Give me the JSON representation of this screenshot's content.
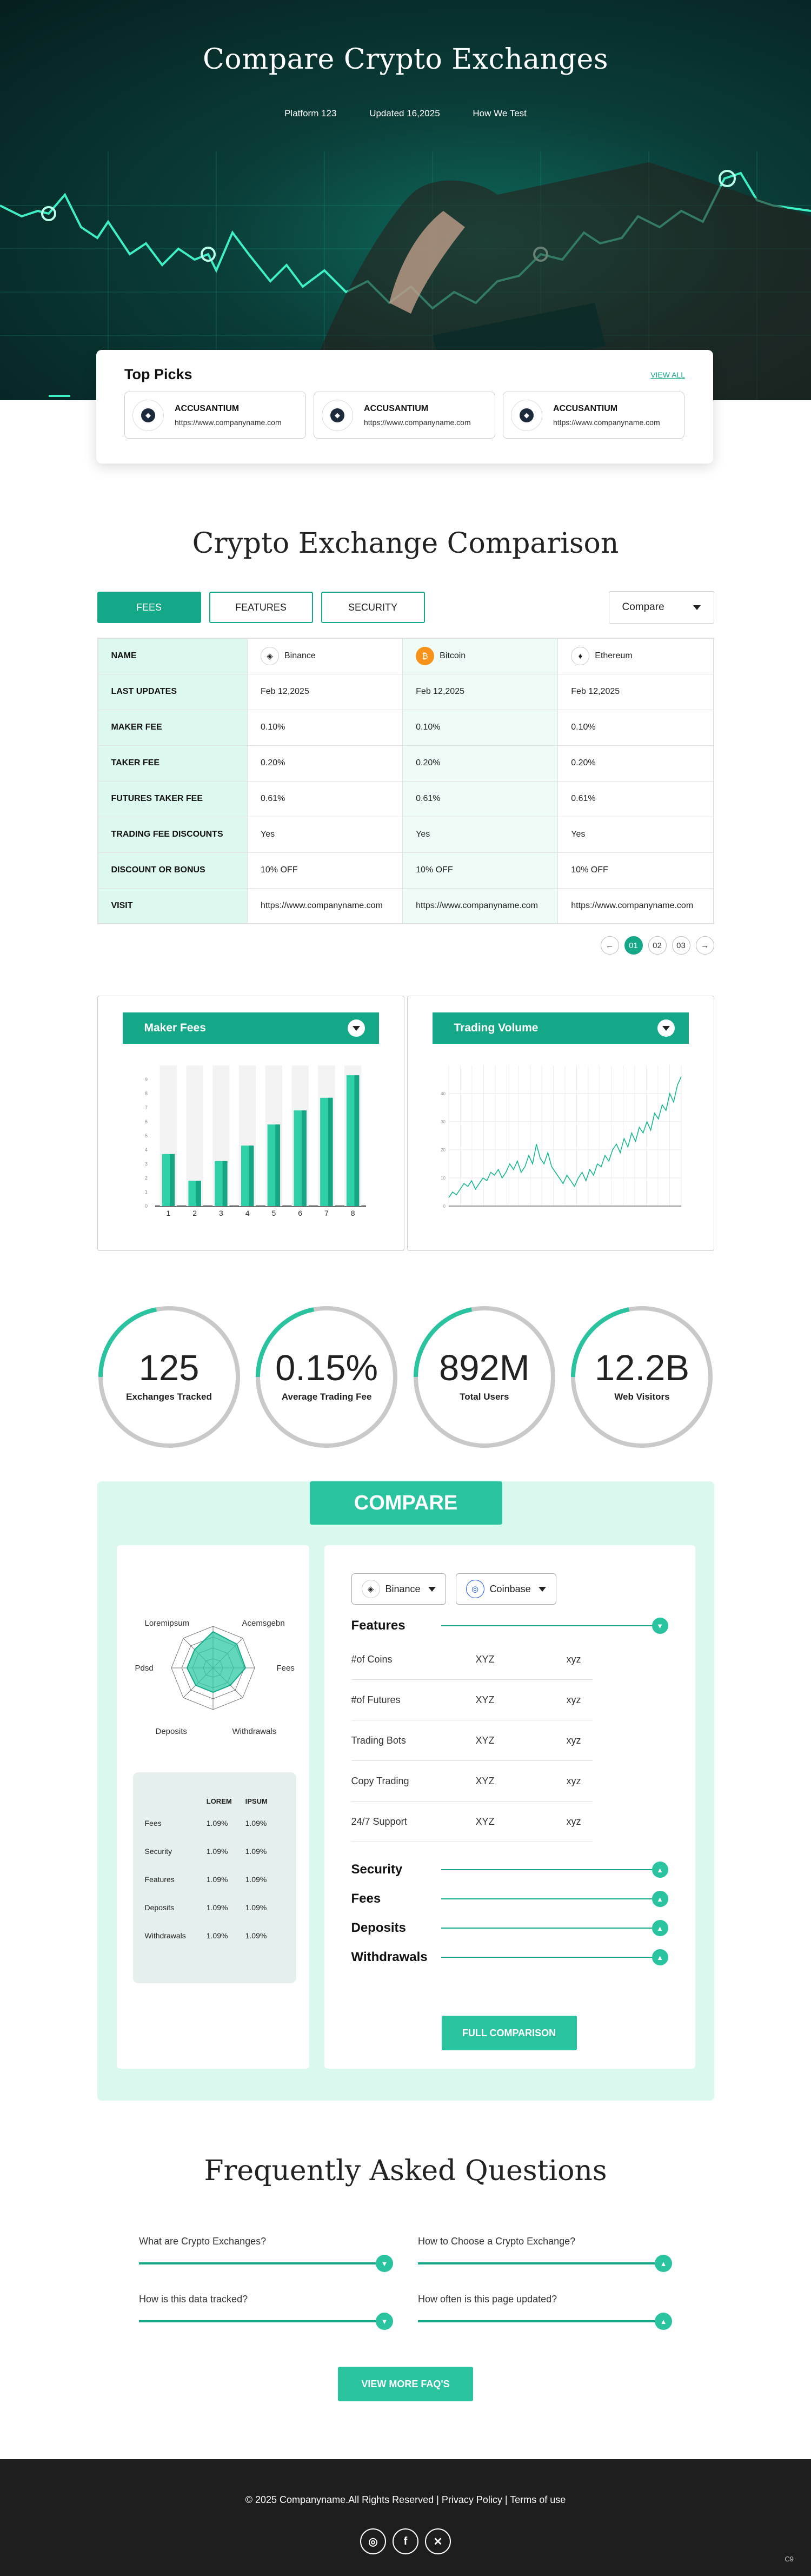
{
  "hero": {
    "title": "Compare Crypto Exchanges",
    "links": [
      "Platform 123",
      "Updated 16,2025",
      "How We Test"
    ]
  },
  "top_picks": {
    "title": "Top Picks",
    "view_all": "VIEW ALL",
    "cards": [
      {
        "name": "ACCUSANTIUM",
        "url": "https://www.companyname.com"
      },
      {
        "name": "ACCUSANTIUM",
        "url": "https://www.companyname.com"
      },
      {
        "name": "ACCUSANTIUM",
        "url": "https://www.companyname.com"
      }
    ]
  },
  "comparison": {
    "title": "Crypto Exchange Comparison",
    "tabs": [
      "FEES",
      "FEATURES",
      "SECURITY"
    ],
    "compare_label": "Compare",
    "columns": [
      "Binance",
      "Bitcoin",
      "Ethereum"
    ],
    "rows": [
      {
        "label": "NAME",
        "values": [
          "Binance",
          "Bitcoin",
          "Ethereum"
        ]
      },
      {
        "label": "LAST UPDATES",
        "values": [
          "Feb 12,2025",
          "Feb 12,2025",
          "Feb 12,2025"
        ]
      },
      {
        "label": "MAKER FEE",
        "values": [
          "0.10%",
          "0.10%",
          "0.10%"
        ]
      },
      {
        "label": "TAKER FEE",
        "values": [
          "0.20%",
          "0.20%",
          "0.20%"
        ]
      },
      {
        "label": "FUTURES TAKER FEE",
        "values": [
          "0.61%",
          "0.61%",
          "0.61%"
        ]
      },
      {
        "label": "TRADING FEE DISCOUNTS",
        "values": [
          "Yes",
          "Yes",
          "Yes"
        ]
      },
      {
        "label": "DISCOUNT OR BONUS",
        "values": [
          "10% OFF",
          "10% OFF",
          "10% OFF"
        ]
      },
      {
        "label": "VISIT",
        "values": [
          "https://www.companyname.com",
          "https://www.companyname.com",
          "https://www.companyname.com"
        ]
      }
    ],
    "pager": [
      "01",
      "02",
      "03"
    ],
    "prev_icon": "arrow-left-icon",
    "next_icon": "arrow-right-icon"
  },
  "chart_data": [
    {
      "type": "bar",
      "title": "Maker Fees",
      "categories": [
        "1",
        "2",
        "3",
        "4",
        "5",
        "6",
        "7",
        "8"
      ],
      "values": [
        3.7,
        1.8,
        3.2,
        4.3,
        5.8,
        6.8,
        7.7,
        9.3
      ],
      "ylim": [
        0,
        10
      ],
      "yticks": [
        "0",
        "1",
        "2",
        "3",
        "4",
        "5",
        "6",
        "7",
        "8",
        "9"
      ],
      "grid": false
    },
    {
      "type": "line",
      "title": "Trading Volume",
      "ylim": [
        0,
        50
      ],
      "yticks": [
        "0",
        "10",
        "20",
        "30",
        "40"
      ],
      "values": [
        3,
        5,
        4,
        6,
        8,
        7,
        9,
        6,
        8,
        10,
        9,
        12,
        11,
        13,
        10,
        12,
        15,
        13,
        16,
        12,
        14,
        18,
        15,
        22,
        17,
        15,
        19,
        14,
        12,
        10,
        8,
        11,
        9,
        7,
        10,
        12,
        9,
        13,
        11,
        15,
        14,
        18,
        16,
        20,
        22,
        19,
        24,
        21,
        26,
        23,
        28,
        26,
        30,
        27,
        33,
        31,
        36,
        34,
        40,
        37,
        43,
        46
      ],
      "grid": true
    }
  ],
  "stats": [
    {
      "value": "125",
      "label": "Exchanges Tracked",
      "fraction": 0.22
    },
    {
      "value": "0.15%",
      "label": "Average Trading Fee",
      "fraction": 0.22
    },
    {
      "value": "892M",
      "label": "Total Users",
      "fraction": 0.22
    },
    {
      "value": "12.2B",
      "label": "Web Visitors",
      "fraction": 0.22
    }
  ],
  "compare": {
    "badge": "COMPARE",
    "radar_labels": [
      "Loremipsum",
      "Acemsgebn",
      "Fees",
      "Withdrawals",
      "Deposits",
      "Pdsd"
    ],
    "mini_table": {
      "headers": [
        "LOREM",
        "IPSUM"
      ],
      "rows": [
        {
          "label": "Fees",
          "a": "1.09%",
          "b": "1.09%"
        },
        {
          "label": "Security",
          "a": "1.09%",
          "b": "1.09%"
        },
        {
          "label": "Features",
          "a": "1.09%",
          "b": "1.09%"
        },
        {
          "label": "Deposits",
          "a": "1.09%",
          "b": "1.09%"
        },
        {
          "label": "Withdrawals",
          "a": "1.09%",
          "b": "1.09%"
        }
      ]
    },
    "selects": [
      "Binance",
      "Coinbase"
    ],
    "features_title": "Features",
    "features": [
      {
        "label": "#of Coins",
        "a": "XYZ",
        "b": "xyz"
      },
      {
        "label": "#of Futures",
        "a": "XYZ",
        "b": "xyz"
      },
      {
        "label": "Trading Bots",
        "a": "XYZ",
        "b": "xyz"
      },
      {
        "label": "Copy Trading",
        "a": "XYZ",
        "b": "xyz"
      },
      {
        "label": "24/7 Support",
        "a": "XYZ",
        "b": "xyz"
      }
    ],
    "sections": [
      "Security",
      "Fees",
      "Deposits",
      "Withdrawals"
    ],
    "full_button": "FULL COMPARISON"
  },
  "faq": {
    "title": "Frequently Asked Questions",
    "items": [
      "What are Crypto Exchanges?",
      "How to Choose a Crypto Exchange?",
      "How is this data tracked?",
      "How often is this page updated?"
    ],
    "button": "VIEW MORE FAQ'S"
  },
  "footer": {
    "copyright": "© 2025 Companyname.All Rights Reserved",
    "privacy": "Privacy Policy",
    "terms": "Terms of use",
    "social_icons": [
      "instagram-icon",
      "facebook-icon",
      "x-icon"
    ],
    "corner": "C9"
  },
  "colors": {
    "accent": "#14a888",
    "accent_light": "#29c3a0",
    "panel_bg": "#dbf8ee"
  }
}
